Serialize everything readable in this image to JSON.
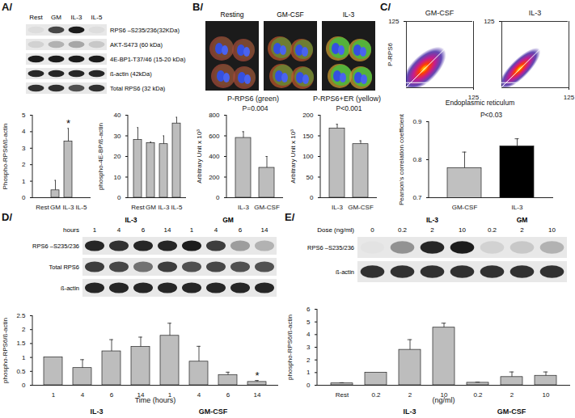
{
  "panel_labels": [
    "A/",
    "B/",
    "C/",
    "D/",
    "E/"
  ],
  "blots": [
    {
      "lanes": [
        "Rest",
        "GM",
        "IL-3",
        "IL-5"
      ],
      "rows": [
        {
          "label": "RPS6 –S235/236(32KDa)",
          "intensity": [
            0.05,
            0.75,
            0.95,
            0.05
          ]
        },
        {
          "label": "AKT-S473 (60 kDa)",
          "intensity": [
            0.1,
            0.25,
            0.3,
            0.15
          ]
        },
        {
          "label": "4E-BP1-T37/46 (15-20 kDa)",
          "intensity": [
            0.95,
            0.95,
            0.95,
            0.95
          ]
        },
        {
          "label": "ß-actin (42kDa)",
          "intensity": [
            0.9,
            0.9,
            0.9,
            0.9
          ]
        },
        {
          "label": "Total RPS6 (32 kDa)",
          "intensity": [
            0.85,
            0.85,
            0.7,
            0.85
          ]
        }
      ]
    },
    {
      "header": "hours",
      "groups": [
        {
          "label": "IL-3",
          "from": 0,
          "to": 3
        },
        {
          "label": "GM",
          "from": 4,
          "to": 7
        }
      ],
      "lanes": [
        "1",
        "4",
        "6",
        "14",
        "1",
        "4",
        "6",
        "14"
      ],
      "rows": [
        {
          "label": "RPS6 –S235/236",
          "intensity": [
            0.9,
            0.85,
            0.9,
            0.9,
            0.95,
            0.8,
            0.35,
            0.25
          ]
        },
        {
          "label": "Total RPS6",
          "intensity": [
            0.8,
            0.75,
            0.55,
            0.8,
            0.7,
            0.75,
            0.7,
            0.7
          ]
        },
        {
          "label": "ß-actin",
          "intensity": [
            0.9,
            0.9,
            0.9,
            0.9,
            0.9,
            0.9,
            0.9,
            0.9
          ]
        }
      ]
    },
    {
      "header": "Dose (ng/ml)",
      "groups": [
        {
          "label": "IL-3",
          "from": 1,
          "to": 3
        },
        {
          "label": "GM",
          "from": 4,
          "to": 6
        }
      ],
      "lanes": [
        "0",
        "0.2",
        "2",
        "10",
        "0.2",
        "2",
        "10"
      ],
      "rows": [
        {
          "label": "RPS6 –S235/236",
          "intensity": [
            0.02,
            0.4,
            0.9,
            0.95,
            0.1,
            0.15,
            0.25
          ]
        },
        {
          "label": "ß-actin",
          "intensity": [
            0.85,
            0.85,
            0.85,
            0.85,
            0.85,
            0.85,
            0.85
          ]
        }
      ]
    }
  ],
  "images": {
    "labels": [
      "Resting",
      "GM-CSF",
      "IL-3"
    ]
  },
  "density_plots": {
    "titles": [
      "GM-CSF",
      "IL-3"
    ],
    "xlabel": "Endoplasmic reticulum",
    "ylabel": "P-RPS6",
    "xlim": [
      0,
      125
    ],
    "ylim": [
      0,
      125
    ],
    "xticks": [
      125
    ],
    "yticks": [
      125
    ]
  },
  "chart_data": [
    {
      "type": "bar",
      "categories": [
        "Rest",
        "GM",
        "IL-3",
        "IL-5"
      ],
      "values": [
        0,
        0.45,
        3.4,
        0
      ],
      "errors": [
        0,
        0.6,
        0.8,
        0
      ],
      "ylabel": "Phospho-RPS6/ß-actin",
      "ylim": [
        0,
        5
      ],
      "yticks": [
        0,
        1,
        2,
        3,
        4,
        5
      ],
      "color": "#bdbdbd",
      "annotations": [
        {
          "index": 2,
          "text": "*"
        }
      ]
    },
    {
      "type": "bar",
      "categories": [
        "Rest",
        "GM",
        "IL-3",
        "IL-5"
      ],
      "values": [
        28,
        26.5,
        26,
        36
      ],
      "errors": [
        6,
        0.5,
        4,
        3
      ],
      "ylabel": "phospho-4E-BP/ß-actin",
      "ylim": [
        0,
        40
      ],
      "yticks": [
        0,
        10,
        20,
        30,
        40
      ],
      "color": "#bdbdbd"
    },
    {
      "type": "bar",
      "title": "P-RPS6 (green)",
      "categories": [
        "IL-3",
        "GM-CSF"
      ],
      "values": [
        580,
        290
      ],
      "errors": [
        60,
        110
      ],
      "ylabel": "Arbitrary Unit x 10³",
      "ylim": [
        0,
        800
      ],
      "yticks": [
        0,
        200,
        400,
        600,
        800
      ],
      "color": "#bdbdbd",
      "annotations": [
        {
          "text": "P=0.004"
        }
      ]
    },
    {
      "type": "bar",
      "title": "P-RPS6+ER (yellow)",
      "categories": [
        "IL-3",
        "GM-CSF"
      ],
      "values": [
        168,
        130
      ],
      "errors": [
        10,
        8
      ],
      "ylabel": "Arbitrary Unit x 10³",
      "ylim": [
        0,
        200
      ],
      "yticks": [
        0,
        50,
        100,
        150,
        200
      ],
      "color": "#bdbdbd",
      "annotations": [
        {
          "text": "P<0.001"
        }
      ]
    },
    {
      "type": "bar",
      "categories": [
        "GM-CSF",
        "IL-3"
      ],
      "values": [
        0.778,
        0.835
      ],
      "errors": [
        0.042,
        0.02
      ],
      "ylabel": "Pearson's correlation coefficient",
      "ylim": [
        0.7,
        0.9
      ],
      "yticks": [
        0.7,
        0.8,
        0.9
      ],
      "colors": [
        "#c0c0c0",
        "#000000"
      ],
      "annotations": [
        {
          "text": "P<0.03"
        }
      ]
    },
    {
      "type": "bar",
      "categories": [
        "1",
        "4",
        "6",
        "14",
        "1",
        "4",
        "6",
        "14"
      ],
      "values": [
        1.0,
        0.62,
        1.22,
        1.38,
        1.78,
        0.85,
        0.37,
        0.12
      ],
      "errors": [
        0,
        0.3,
        0.42,
        0.35,
        0.45,
        0.55,
        0.1,
        0.05
      ],
      "ylabel": "phospho-RPS6/ß-actin",
      "xlabel": "Time (hours)",
      "ylim": [
        0,
        2.5
      ],
      "yticks": [
        0,
        0.5,
        1,
        1.5,
        2,
        2.5
      ],
      "color": "#bdbdbd",
      "groups": [
        {
          "label": "IL-3",
          "from": 0,
          "to": 3
        },
        {
          "label": "GM-CSF",
          "from": 4,
          "to": 7
        }
      ],
      "annotations": [
        {
          "index": 7,
          "text": "*"
        }
      ]
    },
    {
      "type": "bar",
      "categories": [
        "Rest",
        "0.2",
        "2",
        "10",
        "0.2",
        "2",
        "10"
      ],
      "values": [
        0.15,
        1.0,
        2.8,
        4.55,
        0.2,
        0.65,
        0.75
      ],
      "errors": [
        0.05,
        0,
        0.8,
        0.35,
        0.05,
        0.4,
        0.3
      ],
      "ylabel": "phospho-RPS6/ß-actin",
      "xlabel": "(ng/ml)",
      "ylim": [
        0,
        6
      ],
      "yticks": [
        0,
        1,
        2,
        3,
        4,
        5,
        6
      ],
      "color": "#bdbdbd",
      "groups": [
        {
          "label": "IL-3",
          "from": 1,
          "to": 3
        },
        {
          "label": "GM-CSF",
          "from": 4,
          "to": 6
        }
      ]
    }
  ]
}
